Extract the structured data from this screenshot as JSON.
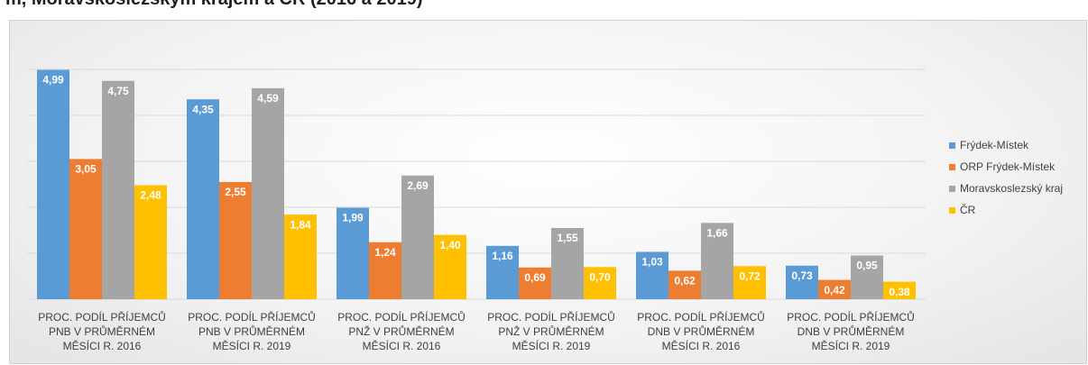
{
  "chart_data": {
    "type": "bar",
    "title": "m, Moravskoslezským krajem a ČR (2016 a 2019)",
    "categories": [
      "PROC. PODÍL PŘÍJEMCŮ PNB V PRŮMĚRNÉM MĚSÍCI R. 2016",
      "PROC. PODÍL PŘÍJEMCŮ PNB V PRŮMĚRNÉM MĚSÍCI R. 2019",
      "PROC. PODÍL PŘÍJEMCŮ PNŽ V PRŮMĚRNÉM MĚSÍCI R. 2016",
      "PROC. PODÍL PŘÍJEMCŮ PNŽ V PRŮMĚRNÉM MĚSÍCI R. 2019",
      "PROC. PODÍL PŘÍJEMCŮ DNB V PRŮMĚRNÉM MĚSÍCI R. 2016",
      "PROC. PODÍL PŘÍJEMCŮ DNB V PRŮMĚRNÉM MĚSÍCI R. 2019"
    ],
    "series": [
      {
        "name": "Frýdek-Místek",
        "color": "#5b9bd5",
        "values": [
          4.99,
          4.35,
          1.99,
          1.16,
          1.03,
          0.73
        ],
        "value_labels": [
          "4,99",
          "4,35",
          "1,99",
          "1,16",
          "1,03",
          "0,73"
        ]
      },
      {
        "name": "ORP Frýdek-Místek",
        "color": "#ed7d31",
        "values": [
          3.05,
          2.55,
          1.24,
          0.69,
          0.62,
          0.42
        ],
        "value_labels": [
          "3,05",
          "2,55",
          "1,24",
          "0,69",
          "0,62",
          "0,42"
        ]
      },
      {
        "name": "Moravskoslezský kraj",
        "color": "#a5a5a5",
        "values": [
          4.75,
          4.59,
          2.69,
          1.55,
          1.66,
          0.95
        ],
        "value_labels": [
          "4,75",
          "4,59",
          "2,69",
          "1,55",
          "1,66",
          "0,95"
        ]
      },
      {
        "name": "ČR",
        "color": "#ffc000",
        "values": [
          2.48,
          1.84,
          1.4,
          0.7,
          0.72,
          0.38
        ],
        "value_labels": [
          "2,48",
          "1,84",
          "1,40",
          "0,70",
          "0,72",
          "0,38"
        ]
      }
    ],
    "ylim": [
      0,
      6
    ],
    "yticks": [
      0,
      1,
      2,
      3,
      4,
      5
    ],
    "grid": true,
    "legend": "right"
  }
}
